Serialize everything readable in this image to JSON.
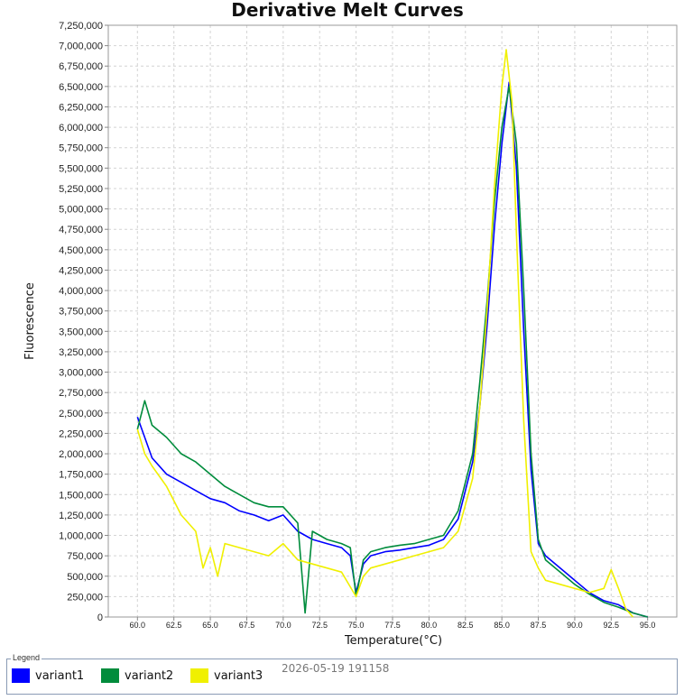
{
  "chart_data": {
    "type": "line",
    "title": "Derivative Melt Curves",
    "xlabel": "Temperature(°C)",
    "ylabel": "Fluorescence",
    "xlim": [
      58.0,
      97.0
    ],
    "ylim": [
      0,
      7250000
    ],
    "xticks": [
      "60.0",
      "62.5",
      "65.0",
      "67.5",
      "70.0",
      "72.5",
      "75.0",
      "77.5",
      "80.0",
      "82.5",
      "85.0",
      "87.5",
      "90.0",
      "92.5",
      "95.0"
    ],
    "yticks": [
      "0",
      "250,000",
      "500,000",
      "750,000",
      "1,000,000",
      "1,250,000",
      "1,500,000",
      "1,750,000",
      "2,000,000",
      "2,250,000",
      "2,500,000",
      "2,750,000",
      "3,000,000",
      "3,250,000",
      "3,500,000",
      "3,750,000",
      "4,000,000",
      "4,250,000",
      "4,500,000",
      "4,750,000",
      "5,000,000",
      "5,250,000",
      "5,500,000",
      "5,750,000",
      "6,000,000",
      "6,250,000",
      "6,500,000",
      "6,750,000",
      "7,000,000",
      "7,250,000"
    ],
    "grid": true,
    "legend_position": "bottom",
    "series": [
      {
        "name": "variant1",
        "color": "#0000ff",
        "x": [
          60.0,
          60.5,
          61,
          62,
          63,
          64,
          65,
          66,
          67,
          68,
          69,
          70,
          71,
          72,
          73,
          74,
          74.6,
          75,
          75.5,
          76,
          77,
          78,
          79,
          80,
          81,
          82,
          83,
          83.5,
          84,
          84.5,
          85,
          85.5,
          86,
          86.5,
          87,
          87.5,
          88,
          89,
          90,
          91,
          92,
          93,
          94,
          95
        ],
        "y": [
          2450000,
          2200000,
          1950000,
          1750000,
          1650000,
          1550000,
          1450000,
          1400000,
          1300000,
          1250000,
          1180000,
          1250000,
          1050000,
          950000,
          900000,
          850000,
          750000,
          300000,
          650000,
          750000,
          800000,
          820000,
          850000,
          880000,
          950000,
          1200000,
          1900000,
          2600000,
          3600000,
          4800000,
          5800000,
          6550000,
          5500000,
          3500000,
          1800000,
          900000,
          750000,
          600000,
          450000,
          300000,
          200000,
          150000,
          50000,
          0
        ]
      },
      {
        "name": "variant2",
        "color": "#008c3c",
        "x": [
          60.0,
          60.5,
          61,
          62,
          63,
          64,
          65,
          66,
          67,
          68,
          69,
          70,
          71,
          71.5,
          72,
          73,
          74,
          74.6,
          75,
          75.5,
          76,
          77,
          78,
          79,
          80,
          81,
          82,
          83,
          83.5,
          84,
          84.5,
          85,
          85.5,
          86,
          86.5,
          87,
          87.5,
          88,
          89,
          90,
          91,
          92,
          93,
          94,
          95
        ],
        "y": [
          2300000,
          2650000,
          2350000,
          2200000,
          2000000,
          1900000,
          1750000,
          1600000,
          1500000,
          1400000,
          1350000,
          1350000,
          1150000,
          50000,
          1050000,
          950000,
          900000,
          850000,
          250000,
          700000,
          800000,
          850000,
          880000,
          900000,
          950000,
          1000000,
          1300000,
          2000000,
          2900000,
          3900000,
          5100000,
          6000000,
          6500000,
          5800000,
          4000000,
          2000000,
          950000,
          700000,
          550000,
          400000,
          280000,
          180000,
          120000,
          50000,
          0
        ]
      },
      {
        "name": "variant3",
        "color": "#f0f000",
        "x": [
          60.0,
          60.5,
          61,
          62,
          63,
          64,
          64.5,
          65,
          65.5,
          66,
          67,
          68,
          69,
          70,
          71,
          72,
          73,
          74,
          75,
          75.5,
          76,
          77,
          78,
          79,
          80,
          81,
          82,
          83,
          83.5,
          84,
          84.5,
          85,
          85.3,
          85.7,
          86,
          86.5,
          87,
          87.5,
          88,
          89,
          90,
          91,
          92,
          92.5,
          93,
          93.5,
          94
        ],
        "y": [
          2300000,
          2000000,
          1850000,
          1600000,
          1250000,
          1050000,
          600000,
          850000,
          500000,
          900000,
          850000,
          800000,
          750000,
          900000,
          700000,
          650000,
          600000,
          550000,
          250000,
          500000,
          600000,
          650000,
          700000,
          750000,
          800000,
          850000,
          1050000,
          1700000,
          2600000,
          3800000,
          5300000,
          6500000,
          6950000,
          6300000,
          4700000,
          2400000,
          800000,
          600000,
          450000,
          400000,
          350000,
          300000,
          350000,
          580000,
          350000,
          100000,
          0
        ]
      }
    ]
  },
  "legend": {
    "title": "Legend",
    "items": [
      {
        "label": "variant1",
        "color": "#0000ff"
      },
      {
        "label": "variant2",
        "color": "#008c3c"
      },
      {
        "label": "variant3",
        "color": "#f0f000"
      }
    ]
  },
  "timestamp": "2026-05-19 191158"
}
